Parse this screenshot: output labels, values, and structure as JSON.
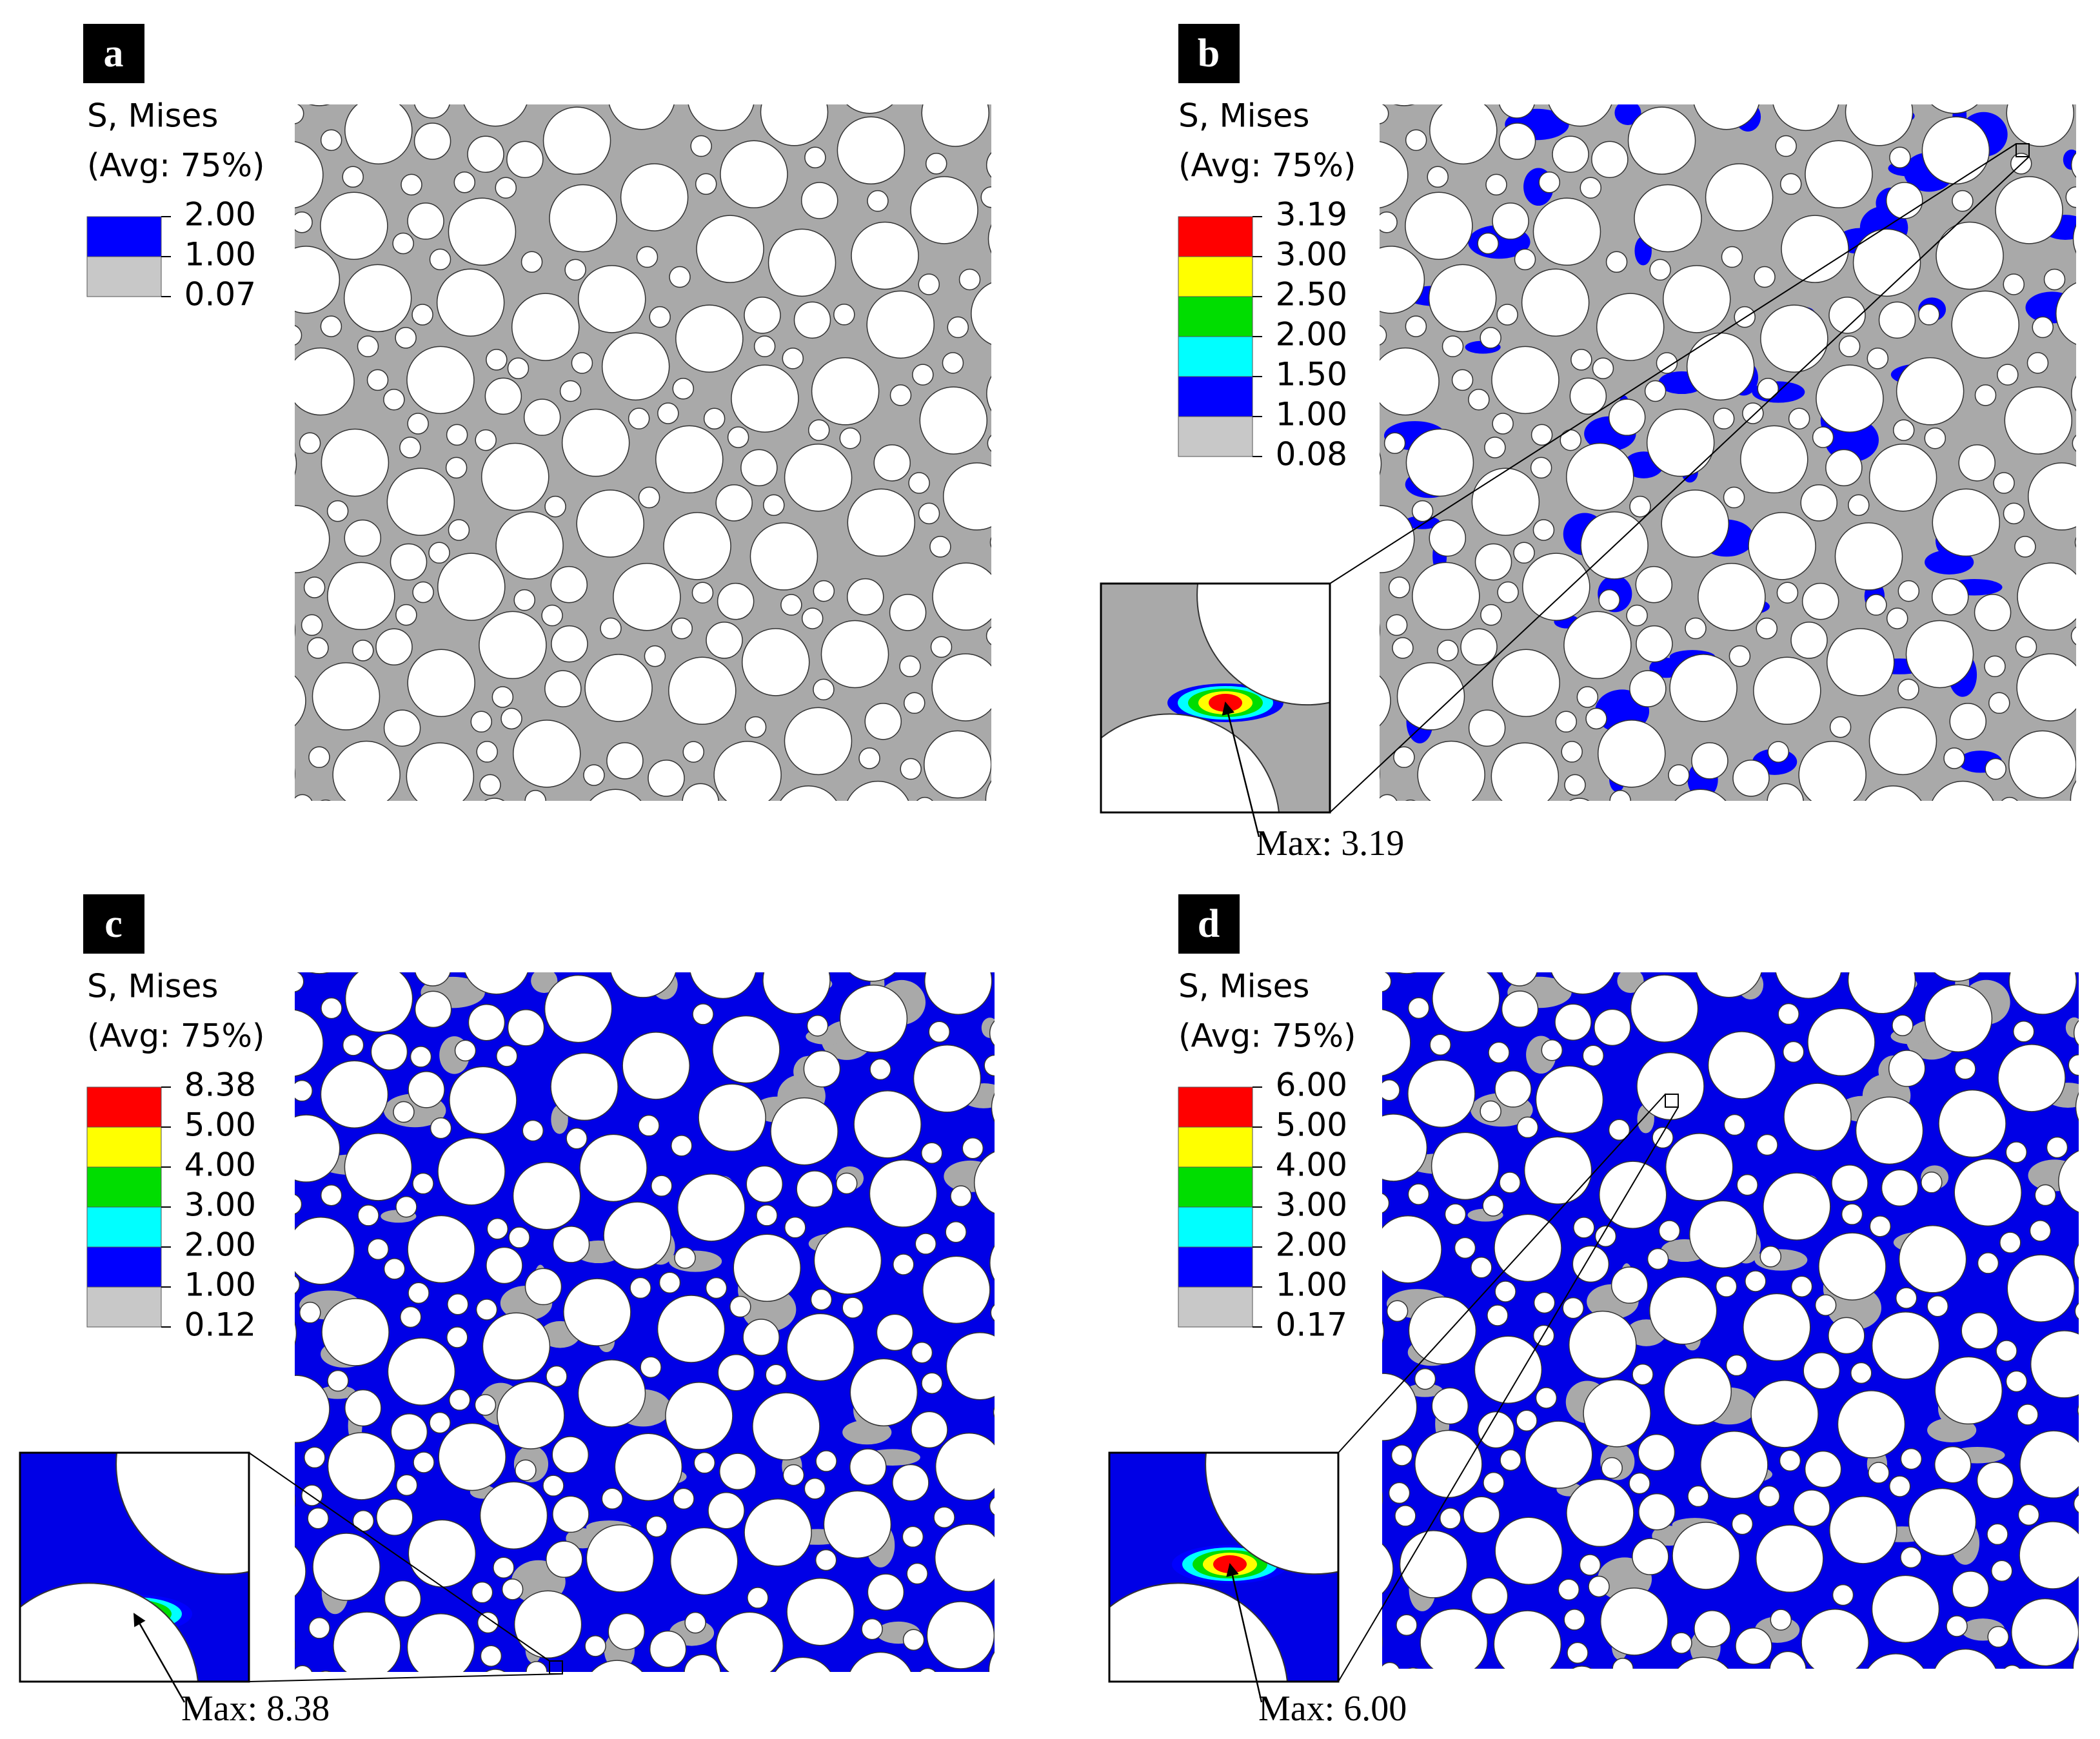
{
  "panels": [
    {
      "label": "a",
      "legend": {
        "title": "S, Mises",
        "subtitle": "(Avg: 75%)",
        "levels": [
          "2.00",
          "1.00",
          "0.07"
        ],
        "colors": [
          "#0000ff",
          "#c8c8c8"
        ]
      }
    },
    {
      "label": "b",
      "legend": {
        "title": "S, Mises",
        "subtitle": "(Avg: 75%)",
        "levels": [
          "3.19",
          "3.00",
          "2.50",
          "2.00",
          "1.50",
          "1.00",
          "0.08"
        ],
        "colors": [
          "#ff0000",
          "#ffff00",
          "#00dd00",
          "#00ffff",
          "#0000ff",
          "#c8c8c8"
        ]
      },
      "max": "Max: 3.19"
    },
    {
      "label": "c",
      "legend": {
        "title": "S, Mises",
        "subtitle": "(Avg: 75%)",
        "levels": [
          "8.38",
          "5.00",
          "4.00",
          "3.00",
          "2.00",
          "1.00",
          "0.12"
        ],
        "colors": [
          "#ff0000",
          "#ffff00",
          "#00dd00",
          "#00ffff",
          "#0000ff",
          "#c8c8c8"
        ]
      },
      "max": "Max: 8.38"
    },
    {
      "label": "d",
      "legend": {
        "title": "S, Mises",
        "subtitle": "(Avg: 75%)",
        "levels": [
          "6.00",
          "5.00",
          "4.00",
          "3.00",
          "2.00",
          "1.00",
          "0.17"
        ],
        "colors": [
          "#ff0000",
          "#ffff00",
          "#00dd00",
          "#00ffff",
          "#0000ff",
          "#c8c8c8"
        ]
      },
      "max": "Max: 6.00"
    }
  ]
}
